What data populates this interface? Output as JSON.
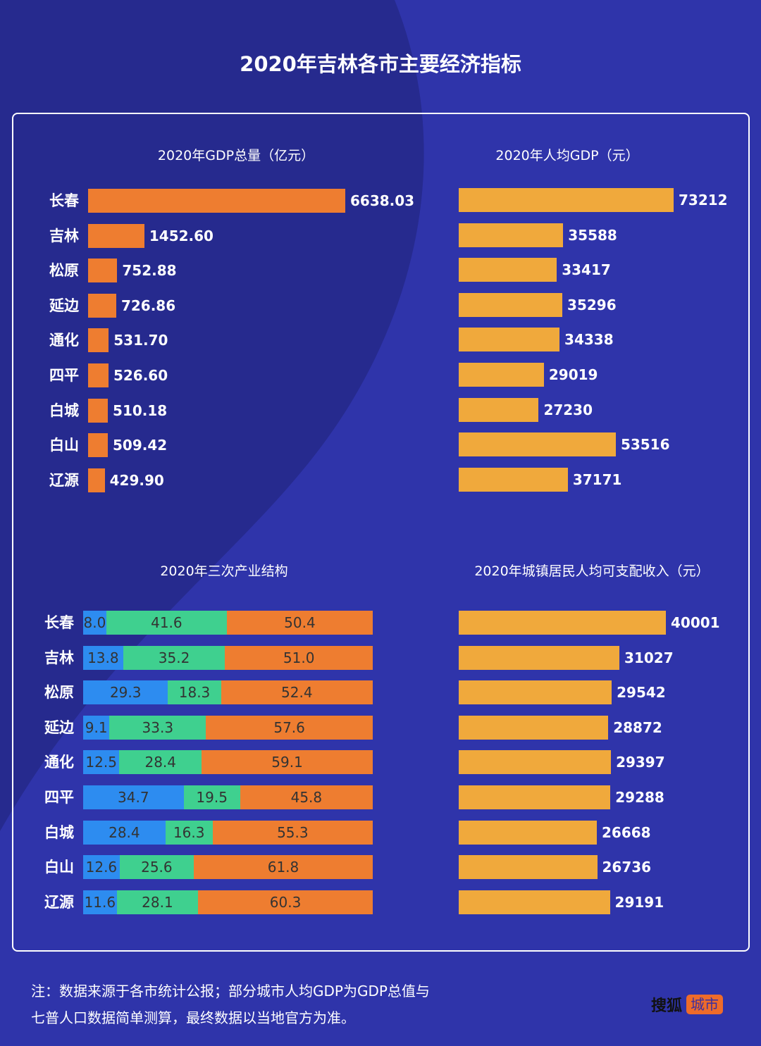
{
  "title": "2020年吉林各市主要经济指标",
  "colors": {
    "background": "#2b2f9f",
    "gdp_bar": "#ee7d30",
    "yellow_bar": "#f0a93c",
    "primary": "#2d8cf0",
    "secondary": "#3fd08f",
    "tertiary": "#ee7d30"
  },
  "chart_data": [
    {
      "type": "bar",
      "orientation": "horizontal",
      "title": "2020年GDP总量（亿元）",
      "categories": [
        "长春",
        "吉林",
        "松原",
        "延边",
        "通化",
        "四平",
        "白城",
        "白山",
        "辽源"
      ],
      "values": [
        6638.03,
        1452.6,
        752.88,
        726.86,
        531.7,
        526.6,
        510.18,
        509.42,
        429.9
      ],
      "labels": [
        "6638.03",
        "1452.60",
        "752.88",
        "726.86",
        "531.70",
        "526.60",
        "510.18",
        "509.42",
        "429.90"
      ]
    },
    {
      "type": "bar",
      "orientation": "horizontal",
      "title": "2020年人均GDP（元）",
      "categories": [
        "长春",
        "吉林",
        "松原",
        "延边",
        "通化",
        "四平",
        "白城",
        "白山",
        "辽源"
      ],
      "values": [
        73212,
        35588,
        33417,
        35296,
        34338,
        29019,
        27230,
        53516,
        37171
      ],
      "labels": [
        "73212",
        "35588",
        "33417",
        "35296",
        "34338",
        "29019",
        "27230",
        "53516",
        "37171"
      ]
    },
    {
      "type": "bar",
      "orientation": "horizontal",
      "stacked": true,
      "title": "2020年三次产业结构",
      "categories": [
        "长春",
        "吉林",
        "松原",
        "延边",
        "通化",
        "四平",
        "白城",
        "白山",
        "辽源"
      ],
      "series": [
        {
          "values": [
            8.0,
            13.8,
            29.3,
            9.1,
            12.5,
            34.7,
            28.4,
            12.6,
            11.6
          ],
          "labels": [
            "8.0",
            "13.8",
            "29.3",
            "9.1",
            "12.5",
            "34.7",
            "28.4",
            "12.6",
            "11.6"
          ]
        },
        {
          "values": [
            41.6,
            35.2,
            18.3,
            33.3,
            28.4,
            19.5,
            16.3,
            25.6,
            28.1
          ],
          "labels": [
            "41.6",
            "35.2",
            "18.3",
            "33.3",
            "28.4",
            "19.5",
            "16.3",
            "25.6",
            "28.1"
          ]
        },
        {
          "values": [
            50.4,
            51.0,
            52.4,
            57.6,
            59.1,
            45.8,
            55.3,
            61.8,
            60.3
          ],
          "labels": [
            "50.4",
            "51.0",
            "52.4",
            "57.6",
            "59.1",
            "45.8",
            "55.3",
            "61.8",
            "60.3"
          ]
        }
      ]
    },
    {
      "type": "bar",
      "orientation": "horizontal",
      "title": "2020年城镇居民人均可支配收入（元）",
      "values": [
        40001,
        31027,
        29542,
        28872,
        29397,
        29288,
        26668,
        26736,
        29191
      ],
      "labels": [
        "40001",
        "31027",
        "29542",
        "28872",
        "29397",
        "29288",
        "26668",
        "26736",
        "29191"
      ]
    }
  ],
  "note": [
    "注：数据来源于各市统计公报；部分城市人均GDP为GDP总值与",
    "七普人口数据简单测算，最终数据以当地官方为准。"
  ],
  "logo": {
    "main": "搜狐",
    "tag": "城市"
  }
}
